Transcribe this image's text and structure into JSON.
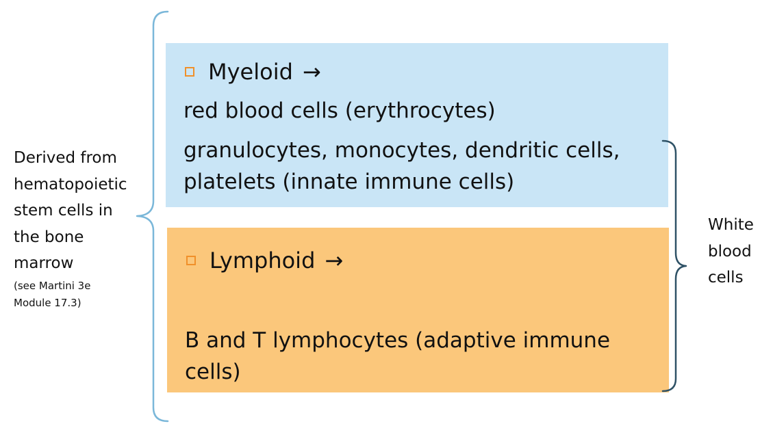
{
  "colors": {
    "myeloid_box": "#c9e5f6",
    "lymphoid_box": "#fbc77b",
    "bullet_outline": "#f0902a",
    "left_brace": "#7ab7d9",
    "right_brace": "#2f5266"
  },
  "left_label": {
    "lines": [
      "Derived from",
      "hematopoietic",
      "stem cells in",
      "the bone",
      "marrow"
    ],
    "note_lines": [
      "(see Martini 3e",
      "Module 17.3)"
    ]
  },
  "myeloid": {
    "heading": "Myeloid",
    "arrow": "→",
    "lines": [
      "red blood cells (erythrocytes)",
      "granulocytes, monocytes, dendritic cells,",
      "platelets (innate immune cells)"
    ]
  },
  "lymphoid": {
    "heading": "Lymphoid",
    "arrow": "→",
    "lines": [
      "B and T lymphocytes (adaptive immune",
      "cells)"
    ]
  },
  "right_label": {
    "lines": [
      "White",
      "blood",
      "cells"
    ]
  }
}
